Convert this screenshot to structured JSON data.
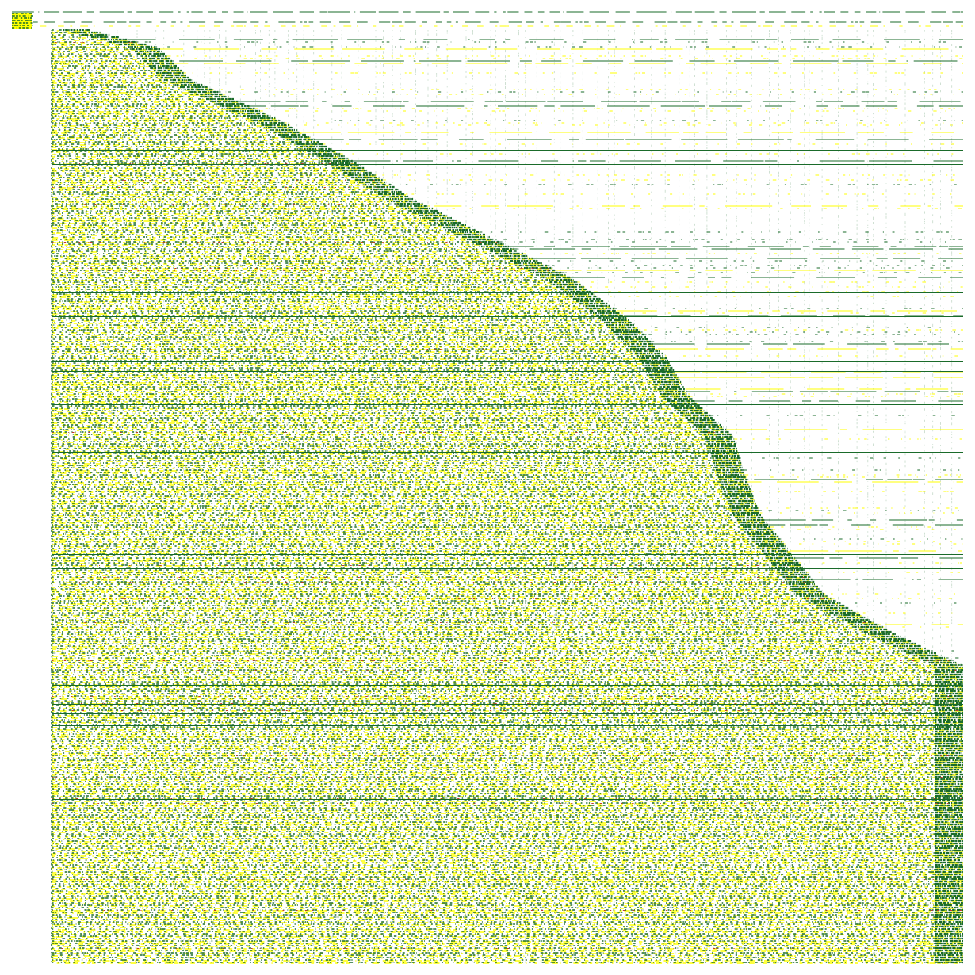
{
  "palette": [
    "#1a6b2a",
    "#ffff00",
    "#c0392b"
  ]
}
